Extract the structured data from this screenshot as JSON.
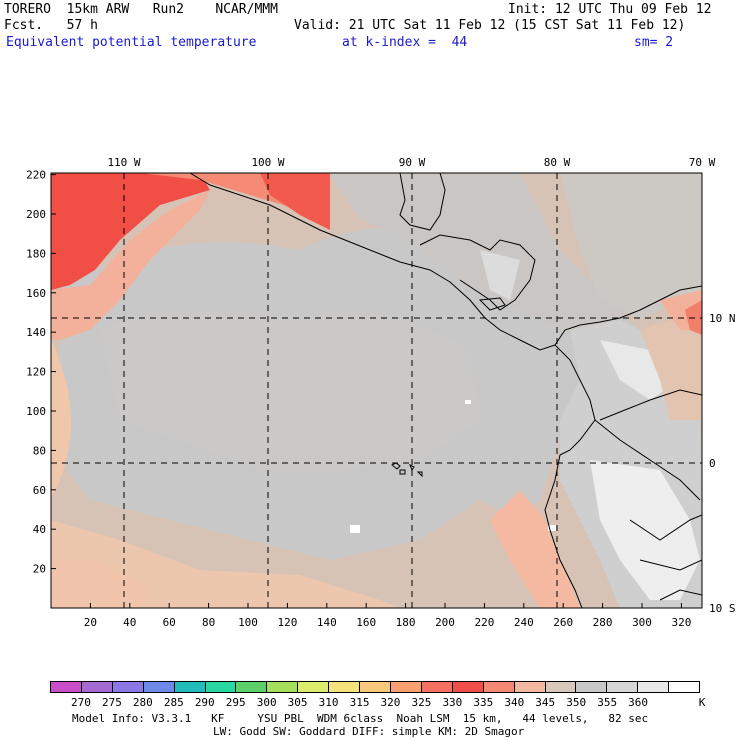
{
  "header": {
    "model": "TORERO  15km ARW   Run2    NCAR/MMM",
    "init": "Init: 12 UTC Thu 09 Feb 12",
    "fcst": "Fcst.   57 h",
    "valid": "Valid: 21 UTC Sat 11 Feb 12 (15 CST Sat 11 Feb 12)",
    "field": "Equivalent potential temperature",
    "level": "at k-index =  44",
    "smooth": "sm= 2"
  },
  "map": {
    "lon_labels": [
      "110 W",
      "100 W",
      "90 W",
      "80 W",
      "70 W"
    ],
    "lat_labels": [
      "10 N",
      "0",
      "10 S"
    ],
    "x_ticks": [
      "20",
      "40",
      "60",
      "80",
      "100",
      "120",
      "140",
      "160",
      "180",
      "200",
      "220",
      "240",
      "260",
      "280",
      "300",
      "320"
    ],
    "y_ticks": [
      "220",
      "200",
      "180",
      "160",
      "140",
      "120",
      "100",
      "80",
      "60",
      "40",
      "20"
    ]
  },
  "colorbar": {
    "labels": [
      "270",
      "275",
      "280",
      "285",
      "290",
      "295",
      "300",
      "305",
      "310",
      "315",
      "320",
      "325",
      "330",
      "335",
      "340",
      "345",
      "350",
      "355",
      "360"
    ],
    "unit": "K",
    "colors": [
      "#c84fc8",
      "#a46ad2",
      "#8c78e4",
      "#6c8ae6",
      "#22bcbc",
      "#28d8a0",
      "#5ed06a",
      "#a4e05c",
      "#dcec6c",
      "#f6e27c",
      "#f8c87a",
      "#f8a070",
      "#f47060",
      "#f04e48",
      "#f48a74",
      "#f2b8a0",
      "#d8c8bc",
      "#c8c8c8",
      "#d6d6d6",
      "#e8e8e8",
      "#ffffff"
    ]
  },
  "footer": {
    "line1": "Model Info: V3.3.1   KF     YSU PBL  WDM 6class  Noah LSM  15 km,   44 levels,   82 sec",
    "line2": "LW: Godd SW: Goddard DIFF: simple KM: 2D Smagor"
  }
}
